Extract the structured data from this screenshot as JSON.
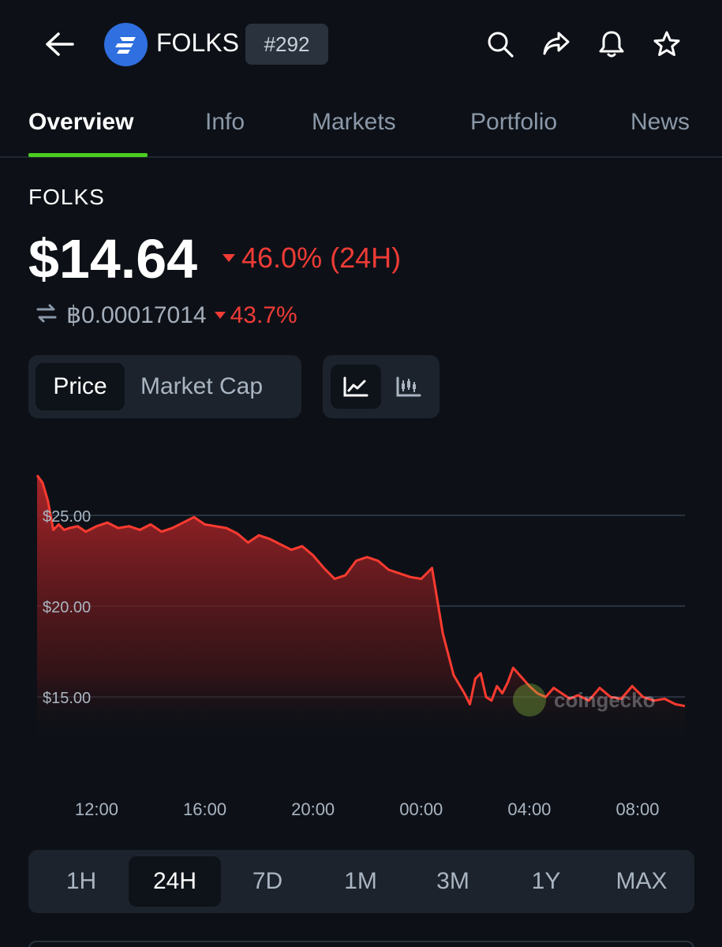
{
  "header": {
    "coin_symbol": "FOLKS",
    "rank": "#292"
  },
  "tabs": [
    {
      "label": "Overview",
      "active": true
    },
    {
      "label": "Info",
      "active": false
    },
    {
      "label": "Markets",
      "active": false
    },
    {
      "label": "Portfolio",
      "active": false
    },
    {
      "label": "News",
      "active": false
    }
  ],
  "coin": {
    "name": "FOLKS",
    "price": "$14.64",
    "change_24h": "46.0% (24H)",
    "btc_price": "฿0.00017014",
    "btc_change": "43.7%"
  },
  "chart_toggle": {
    "price_label": "Price",
    "market_cap_label": "Market Cap"
  },
  "chart_data": {
    "type": "area",
    "title": "",
    "xlabel": "",
    "ylabel": "",
    "x_tick_labels": [
      "12:00",
      "16:00",
      "20:00",
      "00:00",
      "04:00",
      "08:00"
    ],
    "y_tick_labels": [
      "$25.00",
      "$20.00",
      "$15.00"
    ],
    "y_ticks": [
      25,
      20,
      15
    ],
    "xlim": [
      9.8,
      33.75
    ],
    "ylim": [
      13.4,
      27.3
    ],
    "series": [
      {
        "x": [
          9.8,
          10.0,
          10.2,
          10.4,
          10.6,
          10.8,
          11.0,
          11.3,
          11.6,
          12.0,
          12.4,
          12.8,
          13.2,
          13.6,
          14.0,
          14.4,
          14.8,
          15.2,
          15.6,
          16.0,
          16.4,
          16.8,
          17.2,
          17.6,
          18.0,
          18.4,
          18.8,
          19.2,
          19.6,
          20.0,
          20.4,
          20.8,
          21.2,
          21.6,
          22.0,
          22.4,
          22.8,
          23.2,
          23.6,
          24.0,
          24.4,
          24.8,
          25.2,
          25.6,
          25.8,
          26.0,
          26.2,
          26.4,
          26.6,
          26.8,
          27.0,
          27.2,
          27.4,
          27.7,
          28.0,
          28.3,
          28.6,
          28.9,
          29.2,
          29.5,
          29.8,
          30.2,
          30.6,
          31.0,
          31.4,
          31.8,
          32.2,
          32.6,
          33.0,
          33.4,
          33.75
        ],
        "y": [
          27.2,
          26.8,
          25.8,
          24.2,
          24.5,
          24.2,
          24.3,
          24.4,
          24.1,
          24.4,
          24.6,
          24.3,
          24.4,
          24.2,
          24.5,
          24.1,
          24.3,
          24.6,
          24.9,
          24.5,
          24.4,
          24.3,
          24.0,
          23.5,
          23.9,
          23.7,
          23.4,
          23.1,
          23.3,
          22.8,
          22.1,
          21.5,
          21.7,
          22.5,
          22.7,
          22.5,
          22.0,
          21.8,
          21.6,
          21.5,
          22.1,
          18.5,
          16.2,
          15.2,
          14.6,
          16.0,
          16.3,
          15.0,
          14.8,
          15.6,
          15.2,
          15.8,
          16.6,
          16.1,
          15.6,
          15.2,
          15.0,
          15.5,
          15.2,
          14.9,
          15.1,
          14.8,
          15.5,
          15.0,
          14.9,
          15.6,
          15.0,
          14.8,
          14.9,
          14.6,
          14.5
        ]
      }
    ],
    "grid": true,
    "color": "#ff3b30"
  },
  "ranges": [
    {
      "label": "1H",
      "active": false
    },
    {
      "label": "24H",
      "active": true
    },
    {
      "label": "7D",
      "active": false
    },
    {
      "label": "1M",
      "active": false
    },
    {
      "label": "3M",
      "active": false
    },
    {
      "label": "1Y",
      "active": false
    },
    {
      "label": "MAX",
      "active": false
    }
  ],
  "watermark": "coingecko",
  "colors": {
    "background": "#0d1117",
    "accent": "#4bcc1f",
    "negative": "#ef3b36",
    "panel": "#1c232c"
  }
}
